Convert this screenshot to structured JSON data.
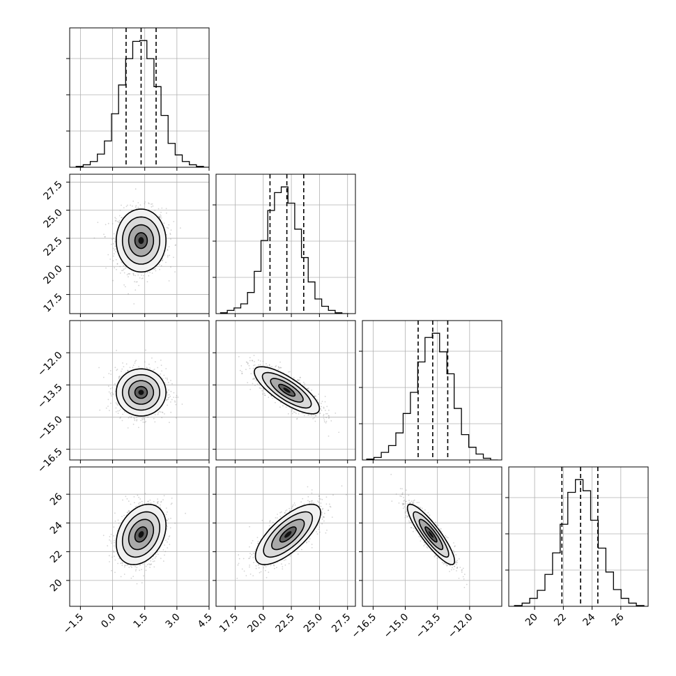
{
  "chart_data": {
    "type": "corner",
    "parameters": 4,
    "grid": true,
    "colors": {
      "line": "#000000",
      "grid": "#b0b0b0",
      "density": "#000000",
      "samples": "#808080"
    },
    "ranges": [
      [
        -2.0,
        4.5
      ],
      [
        15.8,
        28.2
      ],
      [
        -17.0,
        -10.5
      ],
      [
        18.2,
        27.9
      ]
    ],
    "ticks": [
      {
        "values": [
          -1.5,
          0.0,
          1.5,
          3.0,
          4.5
        ],
        "labels": [
          "−1.5",
          "0.0",
          "1.5",
          "3.0",
          "4.5"
        ]
      },
      {
        "values": [
          17.5,
          20.0,
          22.5,
          25.0,
          27.5
        ],
        "labels": [
          "17.5",
          "20.0",
          "22.5",
          "25.0",
          "27.5"
        ]
      },
      {
        "values": [
          -16.5,
          -15.0,
          -13.5,
          -12.0
        ],
        "labels": [
          "−16.5",
          "−15.0",
          "−13.5",
          "−12.0"
        ]
      },
      {
        "values": [
          20,
          22,
          24,
          26
        ],
        "labels": [
          "20",
          "22",
          "24",
          "26"
        ]
      }
    ],
    "marginals": [
      {
        "param": 0,
        "quantiles": [
          0.63,
          1.33,
          2.03
        ],
        "bin_edges": [
          -1.7,
          -1.37,
          -1.04,
          -0.71,
          -0.38,
          -0.05,
          0.28,
          0.61,
          0.94,
          1.27,
          1.6,
          1.93,
          2.26,
          2.59,
          2.92,
          3.25,
          3.58,
          3.91,
          4.24,
          4.57
        ],
        "counts": [
          1,
          3,
          7,
          16,
          32,
          65,
          100,
          132,
          153,
          154,
          132,
          98,
          63,
          29,
          15,
          7,
          3,
          1,
          0
        ]
      },
      {
        "param": 1,
        "quantiles": [
          20.6,
          22.1,
          23.6
        ],
        "bin_edges": [
          16.2,
          16.8,
          17.4,
          18.0,
          18.6,
          19.2,
          19.8,
          20.4,
          21.0,
          21.6,
          22.2,
          22.8,
          23.4,
          24.0,
          24.6,
          25.2,
          25.8,
          26.4,
          27.0,
          27.6
        ],
        "counts": [
          1,
          4,
          7,
          12,
          26,
          52,
          90,
          127,
          149,
          156,
          136,
          104,
          69,
          39,
          18,
          9,
          4,
          1,
          0
        ]
      },
      {
        "param": 2,
        "quantiles": [
          -14.4,
          -13.72,
          -13.02
        ],
        "bin_edges": [
          -16.8,
          -16.46,
          -16.12,
          -15.78,
          -15.44,
          -15.1,
          -14.76,
          -14.42,
          -14.08,
          -13.74,
          -13.4,
          -13.06,
          -12.72,
          -12.38,
          -12.04,
          -11.7,
          -11.36,
          -11.02,
          -10.68
        ],
        "counts": [
          1,
          3,
          9,
          17,
          32,
          55,
          80,
          116,
          145,
          150,
          128,
          102,
          61,
          30,
          15,
          7,
          2,
          0
        ]
      },
      {
        "param": 3,
        "quantiles": [
          21.9,
          23.2,
          24.4
        ],
        "bin_edges": [
          18.6,
          19.13,
          19.66,
          20.19,
          20.72,
          21.25,
          21.78,
          22.31,
          22.84,
          23.37,
          23.9,
          24.43,
          24.96,
          25.49,
          26.02,
          26.55,
          27.08,
          27.61
        ],
        "counts": [
          1,
          4,
          10,
          20,
          40,
          67,
          103,
          143,
          159,
          145,
          108,
          73,
          43,
          21,
          10,
          4,
          1
        ]
      }
    ],
    "joints": [
      {
        "x": 0,
        "y": 1,
        "mean": [
          1.33,
          22.3
        ],
        "sd": [
          0.58,
          1.4
        ],
        "rho": 0.0
      },
      {
        "x": 0,
        "y": 2,
        "mean": [
          1.33,
          -13.85
        ],
        "sd": [
          0.58,
          0.55
        ],
        "rho": 0.0
      },
      {
        "x": 1,
        "y": 2,
        "mean": [
          22.1,
          -13.75
        ],
        "sd": [
          1.45,
          0.55
        ],
        "rho": -0.78
      },
      {
        "x": 0,
        "y": 3,
        "mean": [
          1.33,
          23.2
        ],
        "sd": [
          0.58,
          1.05
        ],
        "rho": 0.3
      },
      {
        "x": 1,
        "y": 3,
        "mean": [
          22.2,
          23.2
        ],
        "sd": [
          1.45,
          1.05
        ],
        "rho": 0.72
      },
      {
        "x": 2,
        "y": 3,
        "mean": [
          -13.8,
          23.2
        ],
        "sd": [
          0.55,
          1.05
        ],
        "rho": -0.88
      }
    ],
    "contour_levels_sigma": [
      0.5,
      1.0,
      1.5,
      2.0
    ],
    "samples_per_panel": 1200
  }
}
